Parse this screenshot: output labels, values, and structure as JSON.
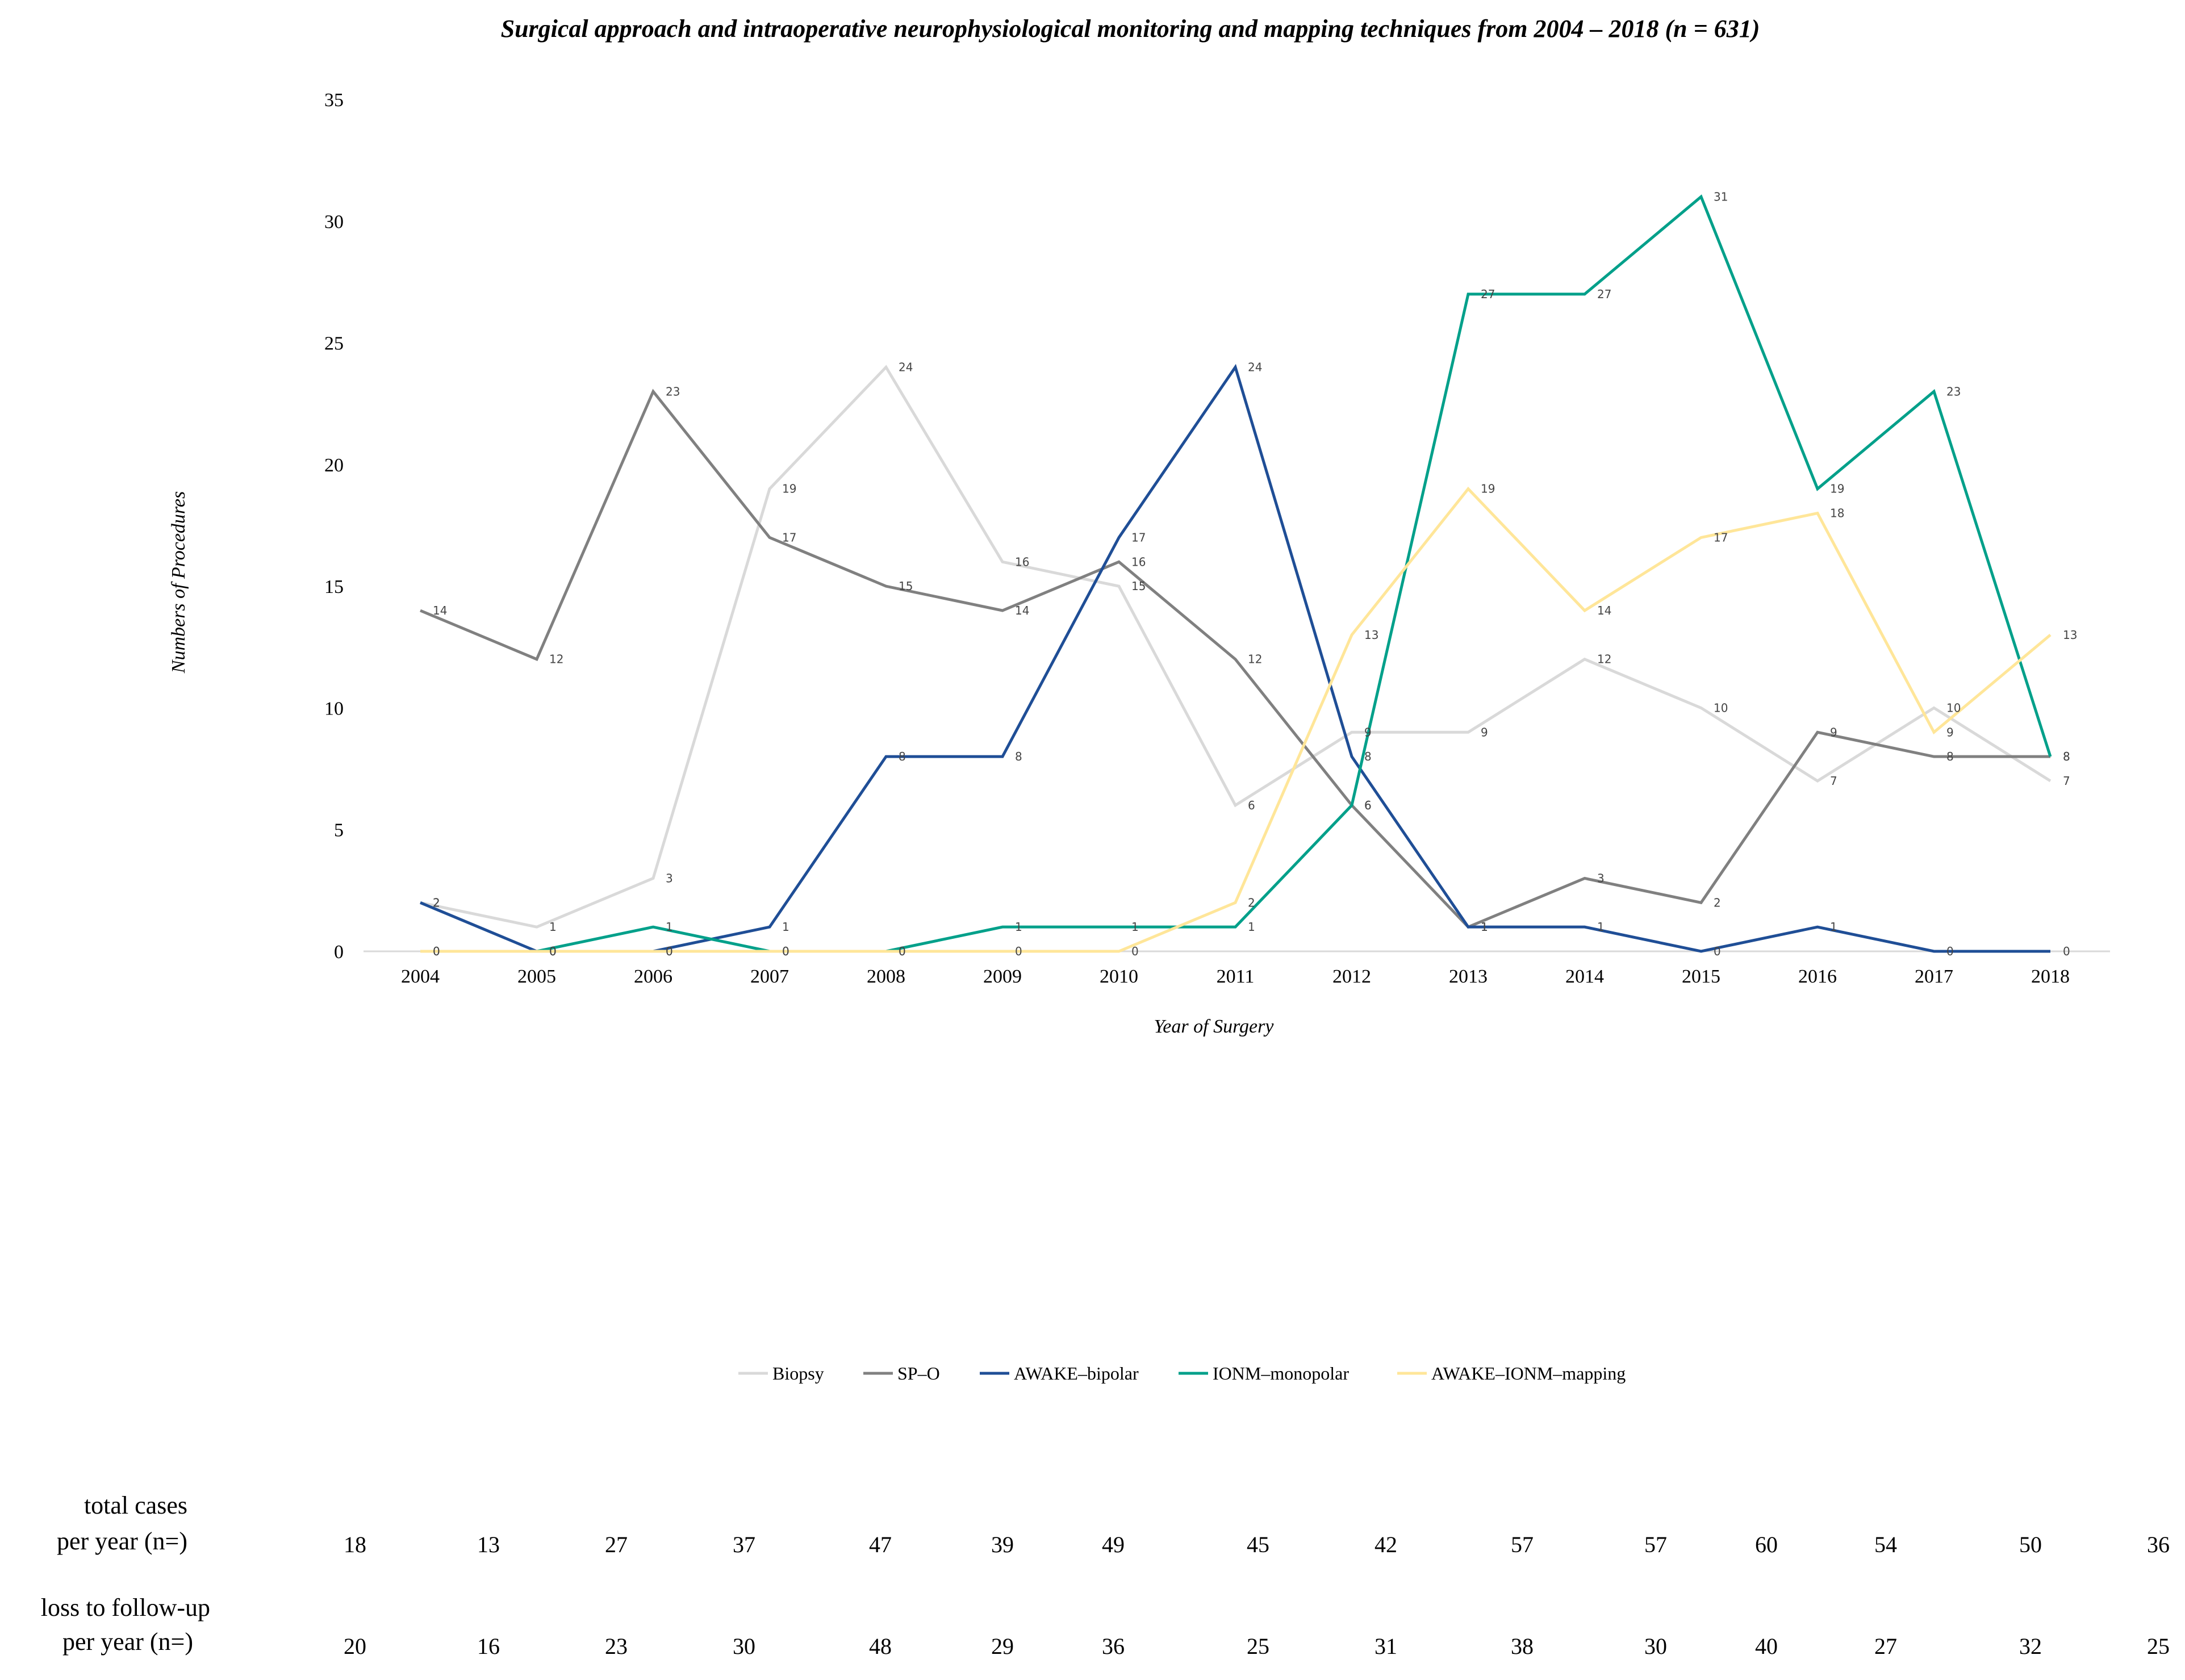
{
  "chart_data": {
    "type": "line",
    "title": "Surgical approach and intraoperative neurophysiological monitoring and mapping techniques from 2004 – 2018 (n = 631)",
    "xlabel": "Year of Surgery",
    "ylabel": "Numbers of Procedures",
    "ylim": [
      0,
      35
    ],
    "yticks": [
      "0",
      "5",
      "10",
      "15",
      "20",
      "25",
      "30",
      "35"
    ],
    "categories": [
      "2004",
      "2005",
      "2006",
      "2007",
      "2008",
      "2009",
      "2010",
      "2011",
      "2012",
      "2013",
      "2014",
      "2015",
      "2016",
      "2017",
      "2018"
    ],
    "grid": false,
    "legend_position": "bottom",
    "series": [
      {
        "name": "Biopsy",
        "color": "#d9d9d9",
        "values": [
          2,
          1,
          3,
          19,
          24,
          16,
          15,
          6,
          9,
          9,
          12,
          10,
          7,
          10,
          7
        ]
      },
      {
        "name": "SP–O",
        "color": "#808080",
        "values": [
          14,
          12,
          23,
          17,
          15,
          14,
          16,
          12,
          6,
          1,
          3,
          2,
          9,
          8,
          8
        ]
      },
      {
        "name": "AWAKE–bipolar",
        "color": "#1f4e96",
        "values": [
          2,
          0,
          0,
          1,
          8,
          8,
          17,
          24,
          8,
          1,
          1,
          0,
          1,
          0,
          0
        ]
      },
      {
        "name": "IONM–monopolar",
        "color": "#00a08a",
        "values": [
          0,
          0,
          1,
          0,
          0,
          1,
          1,
          1,
          6,
          27,
          27,
          31,
          19,
          23,
          8
        ]
      },
      {
        "name": "AWAKE–IONM–mapping",
        "color": "#ffe699",
        "values": [
          0,
          0,
          0,
          0,
          0,
          0,
          0,
          2,
          13,
          19,
          14,
          17,
          18,
          9,
          13
        ]
      }
    ]
  },
  "table": {
    "rows": [
      {
        "label_lines": [
          "total cases",
          "per year (n=)"
        ],
        "values": [
          "18",
          "13",
          "27",
          "37",
          "47",
          "39",
          "49",
          "45",
          "42",
          "57",
          "57",
          "60",
          "54",
          "50",
          "36"
        ]
      },
      {
        "label_lines": [
          "loss to follow-up",
          "per year (n=)"
        ],
        "values": [
          "20",
          "16",
          "23",
          "30",
          "48",
          "29",
          "36",
          "25",
          "31",
          "38",
          "30",
          "40",
          "27",
          "32",
          "25"
        ]
      }
    ]
  }
}
